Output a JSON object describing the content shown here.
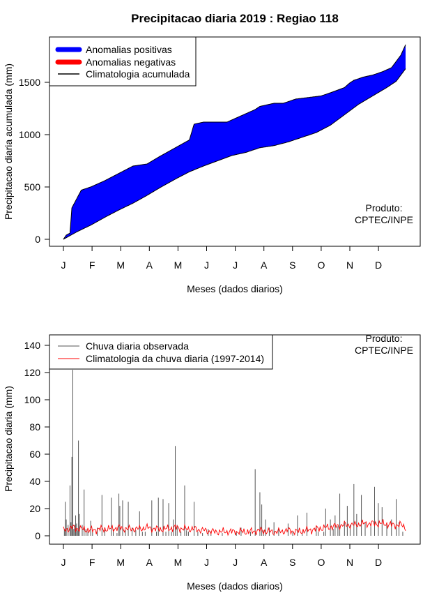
{
  "title": "Precipitacao diaria 2019 : Regiao 118",
  "chart_data": [
    {
      "type": "area",
      "title": "Precipitacao diaria 2019 : Regiao 118",
      "xlabel": "Meses (dados diarios)",
      "ylabel": "Precipitacao diaria acumulada (mm)",
      "xlim": [
        1,
        365
      ],
      "ylim": [
        0,
        1870
      ],
      "yticks": [
        0,
        500,
        1000,
        1500
      ],
      "month_ticks": [
        "J",
        "F",
        "M",
        "A",
        "M",
        "J",
        "J",
        "A",
        "S",
        "O",
        "N",
        "D"
      ],
      "month_start_days": [
        1,
        32,
        60,
        91,
        121,
        152,
        182,
        213,
        244,
        274,
        305,
        335
      ],
      "legend": [
        {
          "label": "Anomalias positivas",
          "color": "#0000ff"
        },
        {
          "label": "Anomalias negativas",
          "color": "#ff0000"
        },
        {
          "label": "Climatologia acumulada",
          "color": "#000000"
        }
      ],
      "credit_line1": "Produto:",
      "credit_line2": "CPTEC/INPE",
      "observed_cumulative": {
        "day": [
          1,
          4,
          8,
          10,
          20,
          30,
          45,
          60,
          75,
          90,
          105,
          115,
          135,
          140,
          150,
          175,
          205,
          210,
          225,
          235,
          248,
          275,
          285,
          300,
          305,
          310,
          320,
          330,
          340,
          350,
          355,
          360,
          365
        ],
        "value": [
          0,
          40,
          60,
          300,
          470,
          500,
          560,
          630,
          700,
          720,
          800,
          850,
          950,
          1100,
          1120,
          1120,
          1240,
          1270,
          1300,
          1300,
          1340,
          1370,
          1400,
          1450,
          1490,
          1520,
          1550,
          1570,
          1600,
          1640,
          1700,
          1760,
          1860
        ]
      },
      "climatology_cumulative": {
        "day": [
          1,
          15,
          30,
          45,
          60,
          75,
          90,
          105,
          120,
          135,
          150,
          165,
          180,
          195,
          210,
          225,
          240,
          255,
          270,
          285,
          300,
          315,
          330,
          345,
          355,
          365
        ],
        "value": [
          0,
          70,
          135,
          210,
          280,
          345,
          420,
          500,
          575,
          645,
          700,
          750,
          800,
          830,
          875,
          895,
          930,
          975,
          1020,
          1090,
          1190,
          1290,
          1370,
          1450,
          1510,
          1630
        ]
      }
    },
    {
      "type": "bar",
      "xlabel": "Meses (dados diarios)",
      "ylabel": "Precipitacao diaria (mm)",
      "xlim": [
        1,
        365
      ],
      "ylim": [
        0,
        150
      ],
      "yticks": [
        0,
        20,
        40,
        60,
        80,
        100,
        120,
        140
      ],
      "month_ticks": [
        "J",
        "F",
        "M",
        "A",
        "M",
        "J",
        "J",
        "A",
        "S",
        "O",
        "N",
        "D"
      ],
      "legend": [
        {
          "label": "Chuva diaria observada",
          "color": "#555555"
        },
        {
          "label": "Climatologia da chuva diaria (1997-2014)",
          "color": "#ff0000"
        }
      ],
      "credit_line1": "Produto:",
      "credit_line2": "CPTEC/INPE",
      "observed_daily": {
        "day": [
          2,
          3,
          4,
          6,
          8,
          9,
          10,
          11,
          12,
          13,
          14,
          15,
          16,
          17,
          18,
          21,
          23,
          25,
          27,
          30,
          32,
          37,
          42,
          45,
          52,
          54,
          58,
          60,
          61,
          64,
          67,
          70,
          74,
          78,
          82,
          85,
          88,
          95,
          100,
          102,
          107,
          110,
          113,
          116,
          118,
          120,
          122,
          126,
          130,
          132,
          134,
          140,
          144,
          149,
          155,
          158,
          170,
          185,
          190,
          200,
          205,
          210,
          212,
          214,
          216,
          220,
          225,
          230,
          240,
          245,
          250,
          255,
          260,
          270,
          272,
          278,
          280,
          285,
          288,
          290,
          293,
          295,
          300,
          303,
          306,
          310,
          313,
          318,
          322,
          328,
          332,
          336,
          340,
          345,
          350,
          355,
          358,
          362
        ],
        "value": [
          5,
          25,
          12,
          8,
          37,
          10,
          58,
          122,
          5,
          8,
          15,
          9,
          4,
          70,
          16,
          8,
          34,
          5,
          3,
          11,
          3,
          6,
          30,
          4,
          28,
          5,
          2,
          31,
          22,
          26,
          4,
          25,
          6,
          4,
          18,
          3,
          3,
          26,
          3,
          28,
          27,
          3,
          24,
          3,
          12,
          66,
          8,
          3,
          37,
          4,
          3,
          25,
          3,
          2,
          5,
          3,
          2,
          3,
          6,
          3,
          49,
          32,
          23,
          4,
          12,
          6,
          10,
          5,
          9,
          3,
          15,
          3,
          17,
          7,
          3,
          3,
          20,
          12,
          5,
          15,
          7,
          31,
          11,
          22,
          8,
          38,
          16,
          30,
          10,
          7,
          36,
          24,
          21,
          8,
          12,
          27,
          10,
          3
        ]
      },
      "climatology_daily": {
        "day": [
          1,
          10,
          20,
          30,
          40,
          50,
          60,
          70,
          80,
          90,
          100,
          110,
          120,
          130,
          140,
          150,
          160,
          170,
          180,
          190,
          200,
          210,
          220,
          230,
          240,
          250,
          260,
          270,
          280,
          290,
          300,
          310,
          320,
          330,
          340,
          350,
          360,
          365
        ],
        "value": [
          4,
          6,
          5,
          4,
          5,
          5,
          6,
          5,
          5,
          6,
          5,
          5,
          6,
          5,
          5,
          4,
          3,
          3,
          3,
          3,
          3,
          4,
          3,
          3,
          4,
          3,
          4,
          5,
          6,
          7,
          8,
          8,
          9,
          9,
          9,
          8,
          8,
          6
        ]
      }
    }
  ]
}
